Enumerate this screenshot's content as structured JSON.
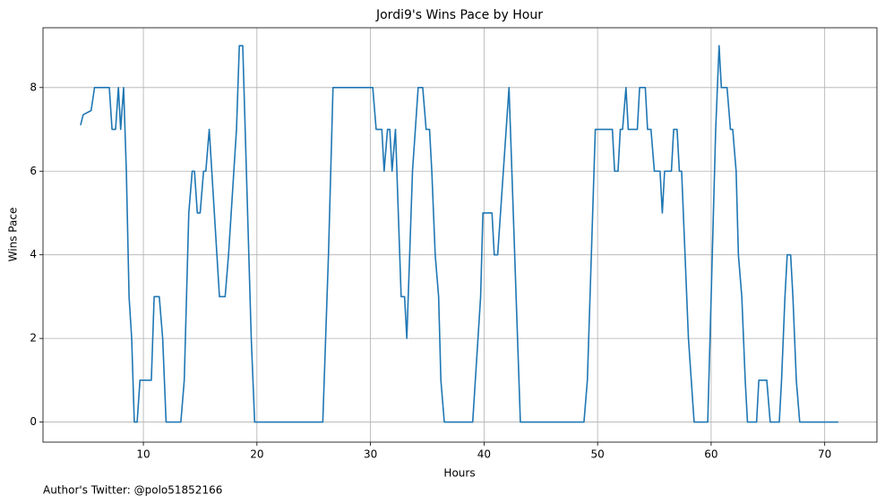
{
  "chart_data": {
    "type": "line",
    "title": "Jordi9's Wins Pace by Hour",
    "xlabel": "Hours",
    "ylabel": "Wins Pace",
    "footnote": "Author's Twitter: @polo51852166",
    "color": "#1f77b4",
    "grid": true,
    "xlim": [
      1.16,
      74.6
    ],
    "ylim": [
      -0.48,
      9.43
    ],
    "xticks": [
      10,
      20,
      30,
      40,
      50,
      60,
      70
    ],
    "yticks": [
      0,
      2,
      4,
      6,
      8
    ],
    "x": [
      4.47,
      4.7,
      5.4,
      5.7,
      7.0,
      7.24,
      7.55,
      7.8,
      8.0,
      8.26,
      8.5,
      8.74,
      8.97,
      9.2,
      9.45,
      9.7,
      10.7,
      10.95,
      11.4,
      11.7,
      12.0,
      13.3,
      13.6,
      14.0,
      14.3,
      14.5,
      14.75,
      15.0,
      15.3,
      15.5,
      15.8,
      16.7,
      17.2,
      17.5,
      18.2,
      18.45,
      18.75,
      19.5,
      19.8,
      25.8,
      26.3,
      26.7,
      30.2,
      30.5,
      31.0,
      31.2,
      31.5,
      31.7,
      31.9,
      32.2,
      32.7,
      33.0,
      33.2,
      33.7,
      34.2,
      34.6,
      34.9,
      35.2,
      35.4,
      35.7,
      36.0,
      36.2,
      36.5,
      39.0,
      39.7,
      39.9,
      40.7,
      40.9,
      41.2,
      42.2,
      43.2,
      48.8,
      49.1,
      49.8,
      51.3,
      51.5,
      51.8,
      52.0,
      52.2,
      52.5,
      52.7,
      53.5,
      53.7,
      54.2,
      54.4,
      54.7,
      55.0,
      55.5,
      55.7,
      55.9,
      56.5,
      56.7,
      57.0,
      57.2,
      57.4,
      58.0,
      58.5,
      59.7,
      60.0,
      60.4,
      60.7,
      60.9,
      61.4,
      61.7,
      61.9,
      62.2,
      62.4,
      62.7,
      63.0,
      63.2,
      64.0,
      64.2,
      64.9,
      65.2,
      66.0,
      66.2,
      66.5,
      66.7,
      67.0,
      67.2,
      67.5,
      67.8,
      71.2
    ],
    "values": [
      7.1,
      7.35,
      7.45,
      8,
      8,
      7,
      7,
      8,
      7,
      8,
      6,
      3,
      2,
      0,
      0,
      1,
      1,
      3,
      3,
      2,
      0,
      0,
      1,
      5,
      6,
      6,
      5,
      5,
      6,
      6,
      7,
      3,
      3,
      4,
      7,
      9,
      9,
      2,
      0,
      0,
      4,
      8,
      8,
      7,
      7,
      6,
      7,
      7,
      6,
      7,
      3,
      3,
      2,
      6,
      8,
      8,
      7,
      7,
      6,
      4,
      3,
      1,
      0,
      0,
      3,
      5,
      5,
      4,
      4,
      8,
      0,
      0,
      1,
      7,
      7,
      6,
      6,
      7,
      7,
      8,
      7,
      7,
      8,
      8,
      7,
      7,
      6,
      6,
      5,
      6,
      6,
      7,
      7,
      6,
      6,
      2,
      0,
      0,
      3,
      7,
      9,
      8,
      8,
      7,
      7,
      6,
      4,
      3,
      1,
      0,
      0,
      1,
      1,
      0,
      0,
      1,
      3,
      4,
      4,
      3,
      1,
      0,
      0
    ]
  }
}
